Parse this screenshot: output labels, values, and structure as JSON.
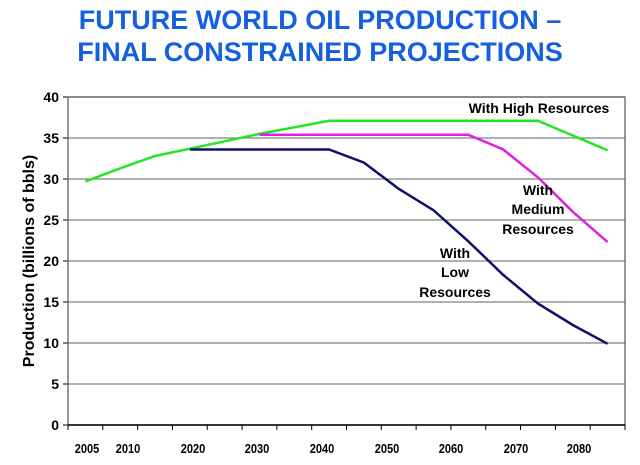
{
  "chart_data": {
    "type": "line",
    "title": [
      "FUTURE WORLD OIL PRODUCTION –",
      "FINAL CONSTRAINED PROJECTIONS"
    ],
    "xlabel": "",
    "ylabel": "Production (billions of bbls)",
    "ylim": [
      0,
      40
    ],
    "yticks": [
      0,
      5,
      10,
      15,
      20,
      25,
      30,
      35,
      40
    ],
    "x": [
      2005,
      2010,
      2015,
      2020,
      2025,
      2030,
      2035,
      2040,
      2045,
      2050,
      2055,
      2060,
      2065,
      2070,
      2075,
      2080
    ],
    "xtick_labels": [
      "2005",
      "2010",
      "2020",
      "2030",
      "2040",
      "2050",
      "2060",
      "2070",
      "2080"
    ],
    "grid": true,
    "series": [
      {
        "name": "With High Resources",
        "label_lines": [
          "With High Resources"
        ],
        "color": "#22e622",
        "values": [
          29.7,
          31.3,
          32.8,
          33.7,
          34.6,
          35.5,
          36.3,
          37.1,
          37.1,
          37.1,
          37.1,
          37.1,
          37.1,
          37.1,
          35.3,
          33.5
        ]
      },
      {
        "name": "With Medium Resources",
        "label_lines": [
          "With",
          "Medium",
          "Resources"
        ],
        "color": "#e020e0",
        "values": [
          null,
          null,
          null,
          null,
          null,
          35.4,
          35.4,
          35.4,
          35.4,
          35.4,
          35.4,
          35.4,
          33.6,
          30.2,
          26.0,
          22.3
        ]
      },
      {
        "name": "With Low Resources",
        "label_lines": [
          "With",
          "Low",
          "Resources"
        ],
        "color": "#10106a",
        "values": [
          null,
          null,
          null,
          33.6,
          33.6,
          33.6,
          33.6,
          33.6,
          32.0,
          28.8,
          26.2,
          22.4,
          18.3,
          14.8,
          12.2,
          9.9
        ]
      }
    ]
  }
}
